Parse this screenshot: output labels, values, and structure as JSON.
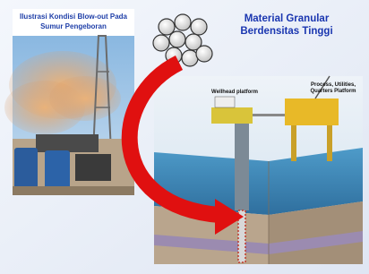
{
  "left_caption": "Ilustrasi Kondisi Blow-out Pada Sumur Pengeboran",
  "title": "Material Granular Berdensitas Tinggi",
  "labels": {
    "wellhead": "Wellhead platform",
    "process": [
      "Process, Utilities,",
      "Quarters Platform"
    ]
  }
}
